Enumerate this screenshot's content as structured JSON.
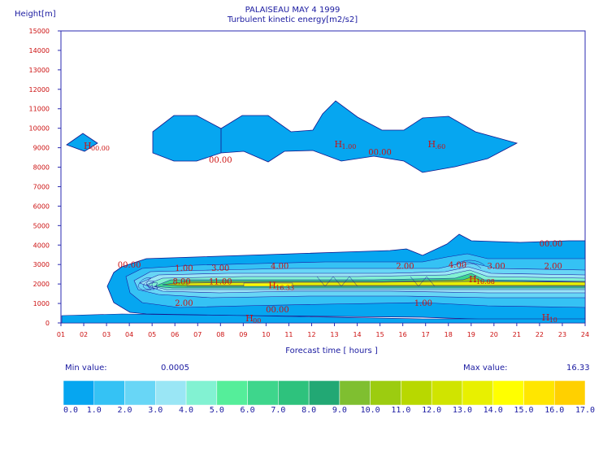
{
  "chart_data": {
    "type": "contour",
    "title": "PALAISEAU MAY 4 1999",
    "subtitle": "Turbulent kinetic energy[m2/s2]",
    "ylabel": "Height[m]",
    "xlabel": "Forecast time  [ hours ]",
    "x_ticks": [
      "01",
      "02",
      "03",
      "04",
      "05",
      "06",
      "07",
      "08",
      "09",
      "10",
      "11",
      "12",
      "13",
      "14",
      "15",
      "16",
      "17",
      "18",
      "19",
      "20",
      "21",
      "22",
      "23",
      "24"
    ],
    "y_ticks": [
      0,
      1000,
      2000,
      3000,
      4000,
      5000,
      6000,
      7000,
      8000,
      9000,
      10000,
      11000,
      12000,
      13000,
      14000,
      15000
    ],
    "ylim": [
      0,
      15000
    ],
    "xlim": [
      1,
      24
    ],
    "contour_labels": [
      {
        "x": 4.0,
        "y": 3000,
        "text": "00.00"
      },
      {
        "x": 6.4,
        "y": 2850,
        "text": "1.00"
      },
      {
        "x": 8.0,
        "y": 2850,
        "text": "3.00"
      },
      {
        "x": 6.3,
        "y": 2150,
        "text": "8.00"
      },
      {
        "x": 8.0,
        "y": 2150,
        "text": "11.00"
      },
      {
        "x": 10.6,
        "y": 2950,
        "text": "4.00"
      },
      {
        "x": 6.4,
        "y": 1050,
        "text": "2.00"
      },
      {
        "x": 10.5,
        "y": 700,
        "text": "00.00"
      },
      {
        "x": 16.1,
        "y": 2950,
        "text": "2.00"
      },
      {
        "x": 18.4,
        "y": 3000,
        "text": "4.00"
      },
      {
        "x": 20.1,
        "y": 2950,
        "text": "3.00"
      },
      {
        "x": 22.6,
        "y": 2950,
        "text": "2.00"
      },
      {
        "x": 16.9,
        "y": 1050,
        "text": "1.00"
      },
      {
        "x": 22.5,
        "y": 4100,
        "text": "00.00"
      },
      {
        "x": 8.0,
        "y": 8400,
        "text": "00.00"
      },
      {
        "x": 15.0,
        "y": 8800,
        "text": "00.00"
      }
    ],
    "maxima": [
      {
        "x": 2.0,
        "y": 9100,
        "text": "H",
        "sub": "00.00"
      },
      {
        "x": 9.1,
        "y": 0,
        "text": "H",
        "sub": "00"
      },
      {
        "x": 10.1,
        "y": 1950,
        "text": "H",
        "sub": "16.33"
      },
      {
        "x": 13.0,
        "y": 9200,
        "text": "H",
        "sub": "1.00"
      },
      {
        "x": 17.1,
        "y": 9200,
        "text": "H",
        "sub": ".60"
      },
      {
        "x": 18.9,
        "y": 2250,
        "text": "H",
        "sub": "10.08"
      },
      {
        "x": 22.1,
        "y": 300,
        "text": "H",
        "sub": "10"
      }
    ],
    "min_label": "Min value:",
    "min_value": "0.0005",
    "max_label": "Max value:",
    "max_value": "16.33",
    "legend": {
      "levels": [
        "0.0",
        "1.0",
        "2.0",
        "3.0",
        "4.0",
        "5.0",
        "6.0",
        "7.0",
        "8.0",
        "9.0",
        "10.0",
        "11.0",
        "12.0",
        "13.0",
        "14.0",
        "15.0",
        "16.0",
        "17.0"
      ],
      "colors": [
        "#06a6f0",
        "#35c2f4",
        "#68d6f6",
        "#9ae6f5",
        "#82f2d2",
        "#55ee9a",
        "#3ed68c",
        "#2ec27d",
        "#22a874",
        "#7fbf30",
        "#9ccc10",
        "#b8d800",
        "#d0e400",
        "#e8f000",
        "#ffff00",
        "#ffe600",
        "#ffd000"
      ]
    }
  }
}
